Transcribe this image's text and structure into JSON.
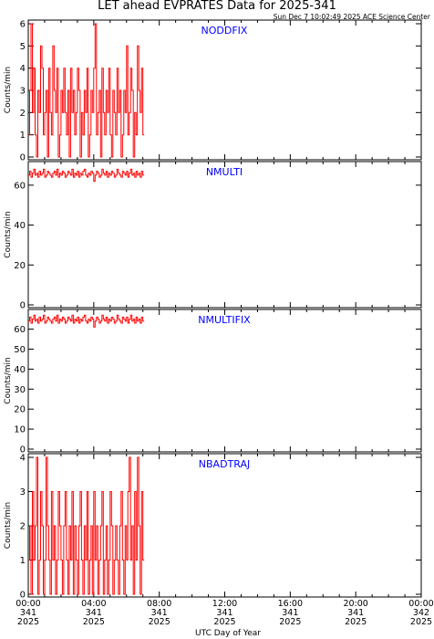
{
  "page": {
    "title": "LET ahead EVPRATES Data for 2025-341",
    "subtitle": "Sun Dec  7 10:02:49 2025 ACE Science Center",
    "xlabel": "UTC Day of Year"
  },
  "colors": {
    "data": "#ff0000",
    "panel_label": "#0000ff",
    "axis": "#000000",
    "background": "#ffffff"
  },
  "chart_data": [
    {
      "type": "line",
      "name": "NODDFIX",
      "ylabel": "Counts/min",
      "ylim": [
        0,
        6
      ],
      "yticks": [
        0,
        1,
        2,
        3,
        4,
        5,
        6
      ],
      "xlim": [
        0,
        24
      ],
      "x_start_hours": 0,
      "x_step_minutes": 5,
      "values": [
        1,
        3,
        6,
        2,
        4,
        1,
        0,
        3,
        2,
        5,
        4,
        1,
        2,
        3,
        0,
        4,
        2,
        1,
        5,
        3,
        2,
        4,
        0,
        1,
        3,
        2,
        4,
        2,
        1,
        3,
        0,
        4,
        2,
        3,
        1,
        2,
        4,
        3,
        0,
        2,
        1,
        3,
        2,
        4,
        0,
        1,
        3,
        2,
        4,
        6,
        1,
        2,
        3,
        0,
        4,
        2,
        1,
        3,
        2,
        4,
        1,
        0,
        3,
        2,
        1,
        4,
        2,
        3,
        0,
        1,
        3,
        2,
        5,
        1,
        2,
        4,
        3,
        0,
        2,
        1,
        5,
        3,
        2,
        4,
        1
      ]
    },
    {
      "type": "line",
      "name": "NMULTI",
      "ylabel": "Counts/min",
      "ylim": [
        0,
        70
      ],
      "yticks": [
        0,
        20,
        40,
        60
      ],
      "xlim": [
        0,
        24
      ],
      "x_start_hours": 0,
      "x_step_minutes": 5,
      "values": [
        65,
        67,
        64,
        66,
        68,
        65,
        66,
        64,
        67,
        65,
        66,
        68,
        64,
        65,
        67,
        66,
        65,
        64,
        66,
        67,
        65,
        68,
        64,
        66,
        65,
        67,
        66,
        64,
        65,
        67,
        66,
        65,
        68,
        64,
        66,
        65,
        67,
        64,
        66,
        65,
        67,
        68,
        65,
        64,
        66,
        65,
        67,
        66,
        62,
        65,
        67,
        66,
        64,
        65,
        68,
        66,
        65,
        67,
        64,
        66,
        65,
        67,
        66,
        64,
        65,
        68,
        66,
        65,
        64,
        67,
        66,
        65,
        67,
        64,
        66,
        68,
        65,
        66,
        64,
        67,
        65,
        66,
        64,
        67,
        65
      ]
    },
    {
      "type": "line",
      "name": "NMULTIFIX",
      "ylabel": "Counts/min",
      "ylim": [
        0,
        68
      ],
      "yticks": [
        0,
        10,
        20,
        30,
        40,
        50,
        60
      ],
      "xlim": [
        0,
        24
      ],
      "x_start_hours": 0,
      "x_step_minutes": 5,
      "values": [
        64,
        66,
        63,
        65,
        67,
        64,
        65,
        63,
        66,
        64,
        65,
        67,
        63,
        64,
        66,
        65,
        64,
        63,
        65,
        66,
        64,
        67,
        63,
        65,
        64,
        66,
        65,
        63,
        64,
        66,
        65,
        64,
        67,
        63,
        65,
        64,
        66,
        63,
        65,
        64,
        66,
        67,
        64,
        63,
        65,
        64,
        66,
        65,
        61,
        64,
        66,
        65,
        63,
        64,
        67,
        65,
        64,
        66,
        63,
        65,
        64,
        66,
        65,
        63,
        64,
        67,
        65,
        64,
        63,
        66,
        65,
        64,
        66,
        63,
        65,
        67,
        64,
        65,
        63,
        66,
        64,
        65,
        63,
        66,
        64
      ]
    },
    {
      "type": "line",
      "name": "NBADTRAJ",
      "ylabel": "Counts/min",
      "ylim": [
        0,
        4
      ],
      "yticks": [
        0,
        1,
        2,
        3,
        4
      ],
      "xlim": [
        0,
        24
      ],
      "x_start_hours": 0,
      "x_step_minutes": 5,
      "xticks": [
        {
          "time": "00:00",
          "day": "341",
          "year": "2025"
        },
        {
          "time": "04:00",
          "day": "341",
          "year": "2025"
        },
        {
          "time": "08:00",
          "day": "341",
          "year": "2025"
        },
        {
          "time": "12:00",
          "day": "341",
          "year": "2025"
        },
        {
          "time": "16:00",
          "day": "341",
          "year": "2025"
        },
        {
          "time": "20:00",
          "day": "341",
          "year": "2025"
        },
        {
          "time": "00:00",
          "day": "342",
          "year": "2025"
        }
      ],
      "values": [
        1,
        2,
        0,
        3,
        1,
        2,
        4,
        0,
        1,
        3,
        2,
        0,
        1,
        4,
        2,
        1,
        0,
        3,
        1,
        2,
        0,
        1,
        3,
        2,
        1,
        0,
        2,
        3,
        1,
        0,
        2,
        1,
        3,
        0,
        2,
        1,
        0,
        2,
        3,
        1,
        0,
        2,
        1,
        3,
        0,
        1,
        2,
        0,
        3,
        1,
        2,
        0,
        1,
        2,
        3,
        0,
        1,
        2,
        0,
        1,
        3,
        2,
        0,
        1,
        2,
        1,
        0,
        2,
        3,
        1,
        0,
        2,
        1,
        3,
        4,
        1,
        2,
        0,
        3,
        1,
        4,
        2,
        0,
        3,
        1
      ]
    }
  ]
}
